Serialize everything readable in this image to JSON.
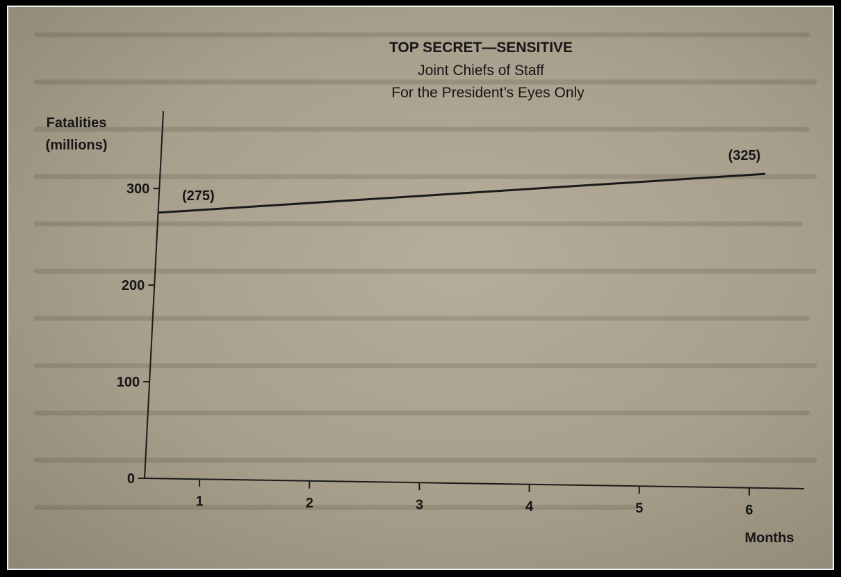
{
  "chart_data": {
    "type": "line",
    "title": "TOP SECRET—SENSITIVE",
    "subtitle_lines": [
      "Joint Chiefs of Staff",
      "For the President’s Eyes Only"
    ],
    "ylabel_lines": [
      "Fatalities",
      "(millions)"
    ],
    "xlabel": "Months",
    "x_ticks": [
      "1",
      "2",
      "3",
      "4",
      "5",
      "6"
    ],
    "y_ticks": [
      "0",
      "100",
      "200",
      "300"
    ],
    "xlim": [
      0.5,
      6.5
    ],
    "ylim": [
      0,
      380
    ],
    "grid": false,
    "series": [
      {
        "x": [
          0.5,
          6
        ],
        "y": [
          275,
          325
        ]
      }
    ],
    "annotations": [
      {
        "text": "(275)",
        "x": 0.6,
        "y": 275
      },
      {
        "text": "(325)",
        "x": 6,
        "y": 325
      }
    ]
  }
}
